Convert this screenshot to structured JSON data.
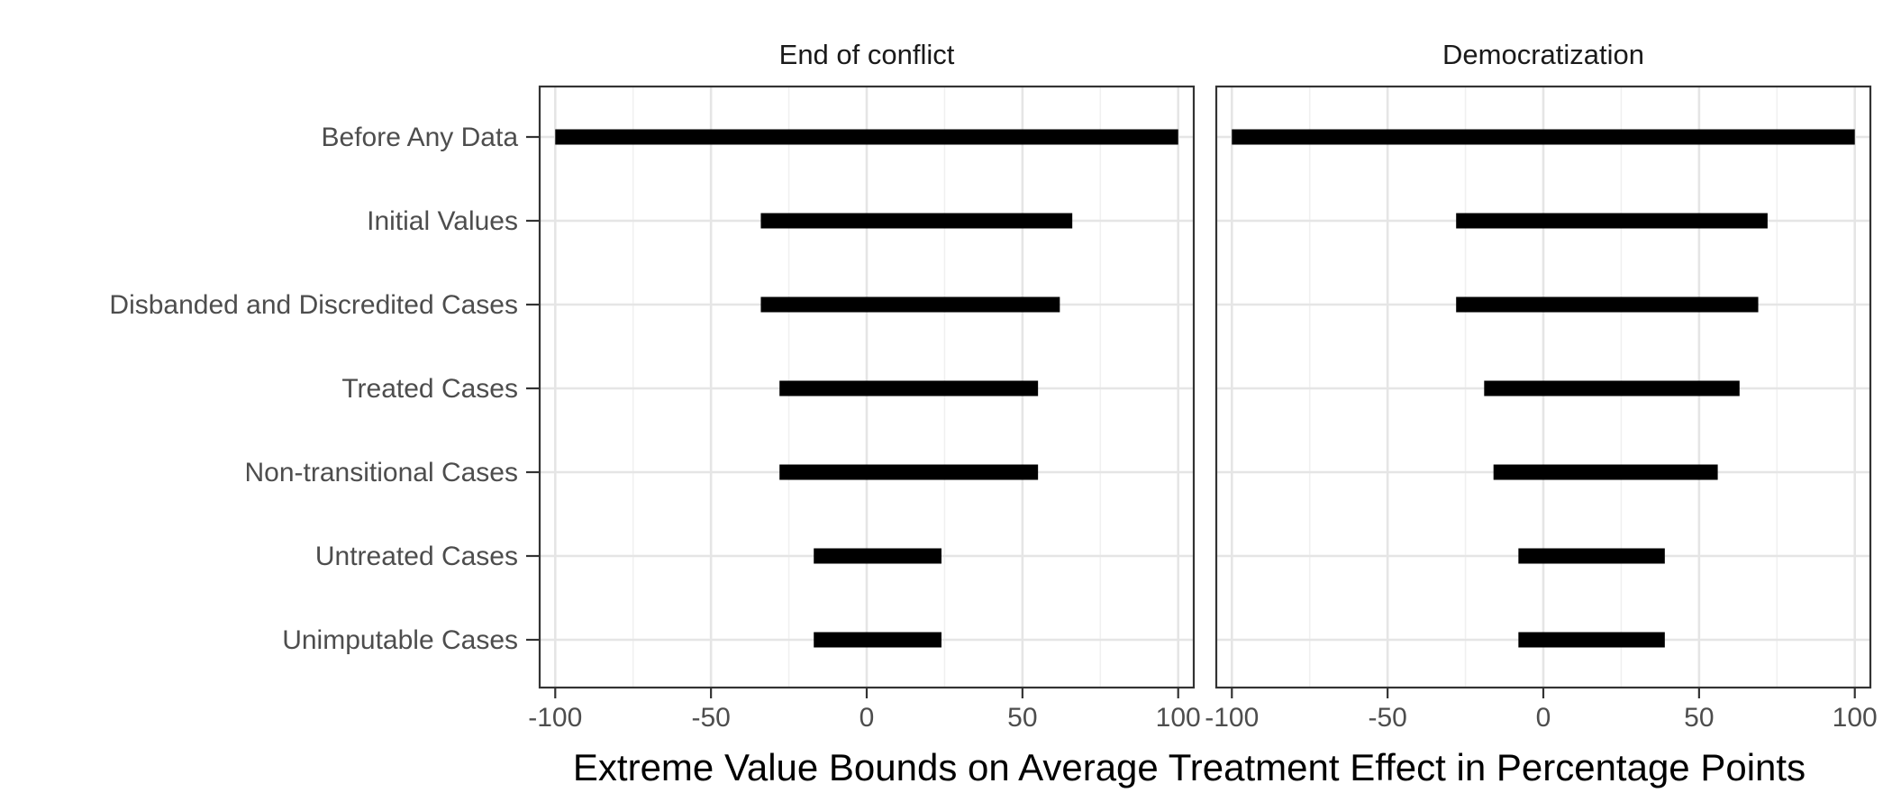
{
  "chart_data": {
    "type": "range-bar",
    "xlabel": "Extreme Value Bounds on Average Treatment Effect in Percentage Points",
    "xlim": [
      -105,
      105
    ],
    "x_ticks": [
      -100,
      -50,
      0,
      50,
      100
    ],
    "x_tick_labels": [
      "-100",
      "-50",
      "0",
      "50",
      "100"
    ],
    "categories": [
      "Before Any Data",
      "Initial Values",
      "Disbanded and Discredited Cases",
      "Treated Cases",
      "Non-transitional Cases",
      "Untreated Cases",
      "Unimputable Cases"
    ],
    "grid": true,
    "panels": [
      {
        "title": "End of conflict",
        "ranges": [
          [
            -100,
            100
          ],
          [
            -34,
            66
          ],
          [
            -34,
            62
          ],
          [
            -28,
            55
          ],
          [
            -28,
            55
          ],
          [
            -17,
            24
          ],
          [
            -17,
            24
          ]
        ]
      },
      {
        "title": "Democratization",
        "ranges": [
          [
            -100,
            100
          ],
          [
            -28,
            72
          ],
          [
            -28,
            69
          ],
          [
            -19,
            63
          ],
          [
            -16,
            56
          ],
          [
            -8,
            39
          ],
          [
            -8,
            39
          ]
        ]
      }
    ]
  }
}
